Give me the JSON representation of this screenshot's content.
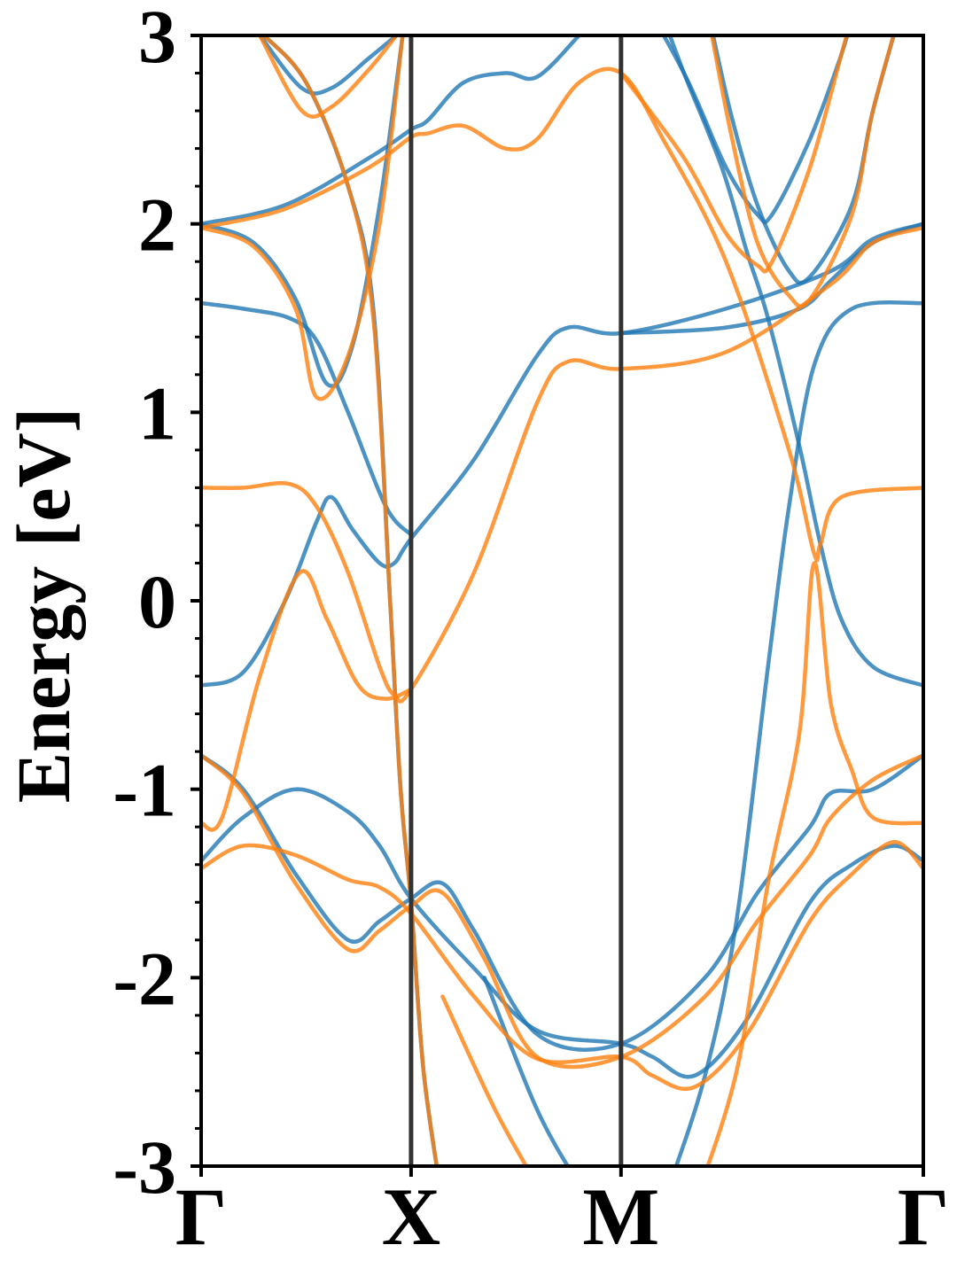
{
  "chart_data": {
    "type": "line",
    "title": "",
    "xlabel": "",
    "ylabel": "Energy [eV]",
    "ylim": [
      -3,
      3
    ],
    "xlim": [
      0,
      3.44
    ],
    "k_points": [
      {
        "label": "Γ",
        "x": 0
      },
      {
        "label": "X",
        "x": 1.0
      },
      {
        "label": "M",
        "x": 2.0
      },
      {
        "label": "Γ",
        "x": 3.44
      }
    ],
    "y_ticks": [
      {
        "value": 3,
        "label": "3"
      },
      {
        "value": 2,
        "label": "2"
      },
      {
        "value": 1,
        "label": "1"
      },
      {
        "value": 0,
        "label": "0"
      },
      {
        "value": -1,
        "label": "-1"
      },
      {
        "value": -2,
        "label": "-2"
      },
      {
        "value": -3,
        "label": "-3"
      }
    ],
    "y_minor_step": 0.2,
    "grid": false,
    "legend": "none",
    "series": [
      {
        "color": "#1f77b4",
        "bands": [
          [
            [
              0,
              -0.45
            ],
            [
              0.2,
              -0.38
            ],
            [
              0.4,
              0.0
            ],
            [
              0.55,
              0.42
            ],
            [
              0.62,
              0.55
            ],
            [
              0.72,
              0.38
            ],
            [
              0.85,
              0.2
            ],
            [
              0.92,
              0.2
            ],
            [
              1.0,
              0.33
            ],
            [
              1.3,
              0.75
            ],
            [
              1.6,
              1.3
            ],
            [
              1.75,
              1.45
            ],
            [
              2.0,
              1.42
            ],
            [
              2.5,
              1.55
            ],
            [
              3.0,
              1.75
            ],
            [
              3.2,
              1.92
            ],
            [
              3.44,
              2.0
            ]
          ],
          [
            [
              0,
              -1.38
            ],
            [
              0.2,
              -1.15
            ],
            [
              0.45,
              -1.0
            ],
            [
              0.7,
              -1.12
            ],
            [
              0.85,
              -1.3
            ],
            [
              1.0,
              -1.58
            ],
            [
              1.3,
              -1.95
            ],
            [
              1.6,
              -2.28
            ],
            [
              2.0,
              -2.35
            ],
            [
              2.15,
              -2.42
            ],
            [
              2.35,
              -2.52
            ],
            [
              2.6,
              -2.22
            ],
            [
              2.9,
              -1.6
            ],
            [
              3.1,
              -1.4
            ],
            [
              3.3,
              -1.3
            ],
            [
              3.44,
              -1.38
            ]
          ],
          [
            [
              0,
              -0.82
            ],
            [
              0.2,
              -1.0
            ],
            [
              0.45,
              -1.45
            ],
            [
              0.7,
              -1.8
            ],
            [
              0.85,
              -1.7
            ],
            [
              1.0,
              -1.58
            ],
            [
              1.15,
              -1.5
            ],
            [
              1.3,
              -1.75
            ],
            [
              1.6,
              -2.3
            ],
            [
              2.0,
              -2.35
            ],
            [
              2.4,
              -2.0
            ],
            [
              2.65,
              -1.55
            ],
            [
              2.9,
              -1.2
            ],
            [
              3.0,
              -1.02
            ],
            [
              3.2,
              -1.0
            ],
            [
              3.44,
              -0.82
            ]
          ],
          [
            [
              0,
              1.58
            ],
            [
              0.2,
              1.55
            ],
            [
              0.42,
              1.5
            ],
            [
              0.55,
              1.38
            ],
            [
              0.7,
              1.0
            ],
            [
              0.88,
              0.5
            ],
            [
              1.0,
              0.35
            ]
          ],
          [
            [
              0,
              2.0
            ],
            [
              0.25,
              1.9
            ],
            [
              0.45,
              1.6
            ],
            [
              0.6,
              1.15
            ],
            [
              0.72,
              1.35
            ],
            [
              0.85,
              2.1
            ],
            [
              0.96,
              3.0
            ]
          ],
          [
            [
              0,
              2.0
            ],
            [
              0.4,
              2.1
            ],
            [
              0.8,
              2.35
            ],
            [
              1.0,
              2.5
            ],
            [
              1.08,
              2.55
            ],
            [
              1.25,
              2.75
            ],
            [
              1.45,
              2.8
            ],
            [
              1.6,
              2.78
            ],
            [
              1.8,
              3.0
            ]
          ],
          [
            [
              0.28,
              3.0
            ],
            [
              0.48,
              2.72
            ],
            [
              0.62,
              2.72
            ],
            [
              0.8,
              2.88
            ],
            [
              0.93,
              3.0
            ]
          ],
          [
            [
              0.3,
              3.0
            ],
            [
              0.5,
              2.75
            ],
            [
              0.7,
              2.2
            ],
            [
              0.82,
              1.55
            ],
            [
              0.9,
              0.0
            ],
            [
              0.95,
              -1.0
            ],
            [
              1.0,
              -1.6
            ],
            [
              1.06,
              -2.5
            ],
            [
              1.15,
              -3.2
            ]
          ],
          [
            [
              1.35,
              -2.0
            ],
            [
              1.6,
              -2.7
            ],
            [
              1.8,
              -3.1
            ]
          ],
          [
            [
              2.0,
              1.42
            ],
            [
              2.5,
              1.45
            ],
            [
              2.85,
              1.55
            ],
            [
              3.0,
              1.7
            ],
            [
              3.2,
              1.9
            ],
            [
              3.44,
              2.0
            ]
          ],
          [
            [
              3.44,
              1.58
            ],
            [
              3.1,
              1.55
            ],
            [
              2.92,
              1.25
            ],
            [
              2.8,
              0.5
            ],
            [
              2.7,
              -0.35
            ],
            [
              2.55,
              -1.7
            ],
            [
              2.4,
              -2.52
            ],
            [
              2.2,
              -3.2
            ]
          ],
          [
            [
              3.44,
              -0.45
            ],
            [
              3.2,
              -0.35
            ],
            [
              3.05,
              -0.1
            ],
            [
              2.95,
              0.3
            ],
            [
              2.85,
              0.82
            ],
            [
              2.7,
              1.5
            ],
            [
              2.6,
              1.85
            ],
            [
              2.48,
              2.3
            ],
            [
              2.3,
              2.8
            ],
            [
              2.2,
              3.1
            ]
          ],
          [
            [
              2.0,
              3.4
            ],
            [
              2.3,
              2.8
            ],
            [
              2.5,
              2.3
            ],
            [
              2.65,
              2.05
            ],
            [
              2.72,
              2.05
            ],
            [
              2.9,
              2.45
            ],
            [
              3.05,
              2.9
            ],
            [
              3.1,
              3.1
            ]
          ],
          [
            [
              2.4,
              3.2
            ],
            [
              2.52,
              2.6
            ],
            [
              2.65,
              2.1
            ],
            [
              2.8,
              1.75
            ],
            [
              2.9,
              1.72
            ],
            [
              3.1,
              2.1
            ],
            [
              3.2,
              2.6
            ],
            [
              3.35,
              3.2
            ]
          ]
        ]
      },
      {
        "color": "#ff7f0e",
        "bands": [
          [
            [
              0,
              0.6
            ],
            [
              0.2,
              0.6
            ],
            [
              0.42,
              0.62
            ],
            [
              0.55,
              0.5
            ],
            [
              0.7,
              0.15
            ],
            [
              0.85,
              -0.35
            ],
            [
              0.92,
              -0.5
            ],
            [
              1.0,
              -0.47
            ],
            [
              1.3,
              0.15
            ],
            [
              1.6,
              1.05
            ],
            [
              1.75,
              1.27
            ],
            [
              2.0,
              1.23
            ],
            [
              2.5,
              1.32
            ],
            [
              3.0,
              1.68
            ],
            [
              3.2,
              1.9
            ],
            [
              3.44,
              1.98
            ]
          ],
          [
            [
              0,
              -1.42
            ],
            [
              0.2,
              -1.3
            ],
            [
              0.45,
              -1.35
            ],
            [
              0.7,
              -1.48
            ],
            [
              0.85,
              -1.52
            ],
            [
              1.0,
              -1.66
            ],
            [
              1.3,
              -2.1
            ],
            [
              1.6,
              -2.43
            ],
            [
              2.0,
              -2.42
            ],
            [
              2.15,
              -2.52
            ],
            [
              2.35,
              -2.58
            ],
            [
              2.6,
              -2.3
            ],
            [
              2.9,
              -1.7
            ],
            [
              3.1,
              -1.45
            ],
            [
              3.3,
              -1.28
            ],
            [
              3.44,
              -1.42
            ]
          ],
          [
            [
              0,
              -0.82
            ],
            [
              0.2,
              -1.02
            ],
            [
              0.45,
              -1.5
            ],
            [
              0.7,
              -1.85
            ],
            [
              0.85,
              -1.75
            ],
            [
              1.0,
              -1.62
            ],
            [
              1.15,
              -1.55
            ],
            [
              1.35,
              -1.9
            ],
            [
              1.6,
              -2.42
            ],
            [
              2.0,
              -2.42
            ],
            [
              2.4,
              -2.1
            ],
            [
              2.65,
              -1.7
            ],
            [
              2.9,
              -1.35
            ],
            [
              3.0,
              -1.15
            ],
            [
              3.2,
              -0.95
            ],
            [
              3.44,
              -0.82
            ]
          ],
          [
            [
              0,
              -1.18
            ],
            [
              0.1,
              -1.15
            ],
            [
              0.28,
              -0.4
            ],
            [
              0.47,
              0.15
            ],
            [
              0.6,
              -0.1
            ],
            [
              0.75,
              -0.45
            ],
            [
              0.88,
              -0.52
            ],
            [
              1.0,
              -0.47
            ]
          ],
          [
            [
              0,
              1.98
            ],
            [
              0.25,
              1.88
            ],
            [
              0.45,
              1.55
            ],
            [
              0.55,
              1.08
            ],
            [
              0.7,
              1.3
            ],
            [
              0.85,
              2.0
            ],
            [
              0.96,
              3.0
            ]
          ],
          [
            [
              0,
              1.98
            ],
            [
              0.4,
              2.08
            ],
            [
              0.8,
              2.3
            ],
            [
              1.0,
              2.46
            ],
            [
              1.08,
              2.48
            ],
            [
              1.25,
              2.52
            ],
            [
              1.45,
              2.4
            ],
            [
              1.6,
              2.45
            ],
            [
              1.8,
              2.75
            ],
            [
              2.0,
              2.8
            ],
            [
              2.2,
              2.45
            ],
            [
              2.5,
              1.8
            ],
            [
              2.8,
              0.8
            ],
            [
              2.92,
              0.25
            ],
            [
              2.95,
              0.3
            ],
            [
              3.05,
              0.55
            ],
            [
              3.44,
              0.6
            ]
          ],
          [
            [
              0.28,
              3.0
            ],
            [
              0.48,
              2.6
            ],
            [
              0.62,
              2.62
            ],
            [
              0.8,
              2.82
            ],
            [
              0.93,
              3.0
            ]
          ],
          [
            [
              0.3,
              3.0
            ],
            [
              0.5,
              2.75
            ],
            [
              0.7,
              2.2
            ],
            [
              0.82,
              1.5
            ],
            [
              0.9,
              0.0
            ],
            [
              0.95,
              -1.0
            ],
            [
              1.0,
              -1.6
            ],
            [
              1.06,
              -2.5
            ],
            [
              1.15,
              -3.2
            ]
          ],
          [
            [
              1.15,
              -2.1
            ],
            [
              1.4,
              -2.7
            ],
            [
              1.6,
              -3.1
            ]
          ],
          [
            [
              3.44,
              -1.18
            ],
            [
              3.2,
              -1.15
            ],
            [
              3.1,
              -0.9
            ],
            [
              3.0,
              -0.55
            ],
            [
              2.92,
              0.2
            ],
            [
              2.85,
              -0.7
            ],
            [
              2.7,
              -1.5
            ],
            [
              2.55,
              -2.5
            ],
            [
              2.35,
              -3.2
            ]
          ],
          [
            [
              2.0,
              2.8
            ],
            [
              2.3,
              2.35
            ],
            [
              2.5,
              1.95
            ],
            [
              2.65,
              1.78
            ],
            [
              2.72,
              1.8
            ],
            [
              2.9,
              2.3
            ],
            [
              3.05,
              2.9
            ],
            [
              3.1,
              3.1
            ]
          ],
          [
            [
              2.4,
              3.2
            ],
            [
              2.52,
              2.5
            ],
            [
              2.65,
              1.9
            ],
            [
              2.8,
              1.62
            ],
            [
              2.9,
              1.6
            ],
            [
              3.1,
              2.05
            ],
            [
              3.2,
              2.6
            ],
            [
              3.35,
              3.2
            ]
          ]
        ]
      }
    ]
  }
}
